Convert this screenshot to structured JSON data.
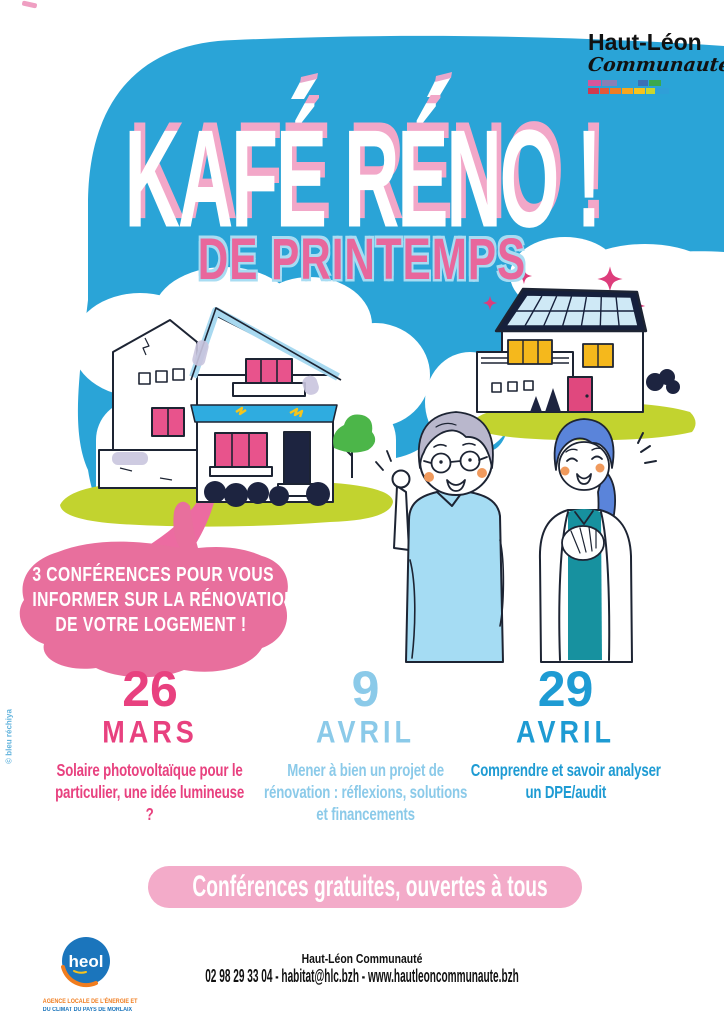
{
  "poster": {
    "logo": {
      "name": "Haut-Léon",
      "type": "Communauté",
      "bars": [
        [
          {
            "c": "#d6569b",
            "w": 13
          },
          {
            "c": "#8b7fb5",
            "w": 15
          },
          {
            "c": "#2f9fd8",
            "w": 19
          },
          {
            "c": "#3b6fb6",
            "w": 10
          },
          {
            "c": "#3aa94e",
            "w": 12
          }
        ],
        [
          {
            "c": "#cf3a50",
            "w": 11
          },
          {
            "c": "#e2593c",
            "w": 9
          },
          {
            "c": "#ef7d22",
            "w": 11
          },
          {
            "c": "#f5a61f",
            "w": 11
          },
          {
            "c": "#f7c31e",
            "w": 11
          },
          {
            "c": "#cbd62e",
            "w": 9
          },
          {
            "c": "#2f9fd8",
            "w": 13
          }
        ]
      ]
    },
    "title": "KAFÉ RÉNO !",
    "subtitle": "DE PRINTEMPS",
    "bubble": {
      "line1": "3 CONFÉRENCES POUR VOUS",
      "line2": "INFORMER SUR LA RÉNOVATION",
      "line3": "DE VOTRE LOGEMENT !"
    },
    "events": [
      {
        "day": "26",
        "month": "MARS",
        "description": "Solaire photovoltaïque pour le particulier, une idée lumineuse ?",
        "color": "#e8417f"
      },
      {
        "day": "9",
        "month": "AVRIL",
        "description": "Mener à bien un projet de rénovation : réflexions, solutions et financements",
        "color": "#8bcae9"
      },
      {
        "day": "29",
        "month": "AVRIL",
        "description": "Comprendre et savoir analyser un DPE/audit",
        "color": "#1e9bd3"
      }
    ],
    "banner": "Conférences gratuites, ouvertes à tous",
    "footer": {
      "org": "Haut-Léon Communauté",
      "contact": "02 98 29 33 04 - habitat@hlc.bzh - www.hautleoncommunaute.bzh",
      "heol_name": "heol",
      "heol_tagline_1": "AGENCE LOCALE DE L'ÉNERGIE ET",
      "heol_tagline_2": "DU CLIMAT DU PAYS DE MORLAIX"
    },
    "credit": "© bleu réchiya",
    "colors": {
      "sky_blue": "#2aa4d7",
      "title_shadow_pink": "#f2a7c8",
      "subtitle_pink": "#e8679c",
      "bubble_pink": "#e86f9d",
      "event_pink": "#e8417f",
      "event_light_blue": "#8bcae9",
      "event_mid_blue": "#1e9bd3",
      "banner_pink": "#f3abc9",
      "grass_green": "#c2d32f",
      "tree_green": "#4cb649",
      "navy": "#1d2440",
      "window_pink": "#e8538c",
      "window_yellow": "#f5b81c",
      "heol_blue": "#1b75bc",
      "heol_orange": "#f07d1f"
    }
  }
}
